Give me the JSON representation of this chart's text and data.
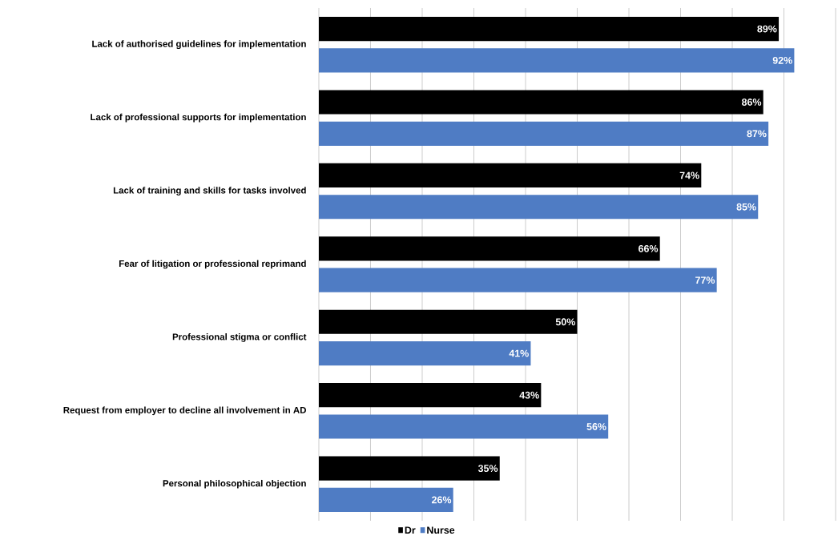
{
  "chart_data": {
    "type": "bar",
    "orientation": "horizontal",
    "categories": [
      "Lack of authorised guidelines  for implementation",
      "Lack of professional supports for implementation",
      "Lack of training and skills for tasks involved",
      "Fear of litigation or professional reprimand",
      "Professional stigma or conflict",
      "Request from employer to decline all involvement in AD",
      "Personal philosophical objection"
    ],
    "series": [
      {
        "name": "Dr",
        "color": "#000000",
        "values": [
          89,
          86,
          74,
          66,
          50,
          43,
          35
        ],
        "value_labels": [
          "89%",
          "86%",
          "74%",
          "66%",
          "50%",
          "43%",
          "35%"
        ]
      },
      {
        "name": "Nurse",
        "color": "#4f7cc4",
        "values": [
          92,
          87,
          85,
          77,
          41,
          56,
          26
        ],
        "value_labels": [
          "92%",
          "87%",
          "85%",
          "77%",
          "41%",
          "56%",
          "26%"
        ]
      }
    ],
    "xlim": [
      0,
      100
    ],
    "xticks": [
      {
        "value": 0,
        "label": null
      },
      {
        "value": 10,
        "label": null
      },
      {
        "value": 20,
        "label": null
      },
      {
        "value": 30,
        "label": null
      },
      {
        "value": 40,
        "label": null
      },
      {
        "value": 50,
        "label": null
      },
      {
        "value": 60,
        "label": null
      },
      {
        "value": 70,
        "label": null
      },
      {
        "value": 80,
        "label": null
      },
      {
        "value": 90,
        "label": null
      },
      {
        "value": 100,
        "label": null
      }
    ],
    "grid": "x",
    "legend": "bottom",
    "tick_labels": "y"
  }
}
